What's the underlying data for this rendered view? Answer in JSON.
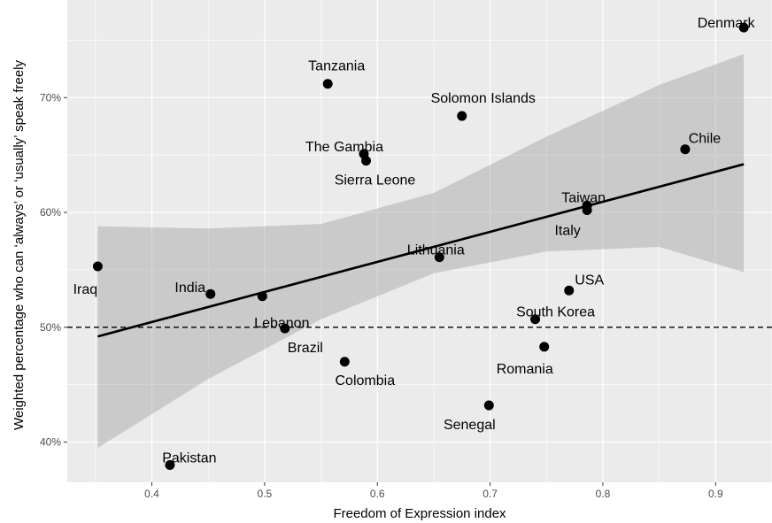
{
  "chart_data": {
    "type": "scatter",
    "xlabel": "Freedom of Expression index",
    "ylabel": "Weighted percentage who can ‘always’ or ‘usually’ speak freely",
    "xlim": [
      0.325,
      0.95
    ],
    "ylim": [
      0.365,
      0.785
    ],
    "xticks": [
      {
        "value": 0.4,
        "label": "0.4"
      },
      {
        "value": 0.5,
        "label": "0.5"
      },
      {
        "value": 0.6,
        "label": "0.6"
      },
      {
        "value": 0.7,
        "label": "0.7"
      },
      {
        "value": 0.8,
        "label": "0.8"
      },
      {
        "value": 0.9,
        "label": "0.9"
      }
    ],
    "yticks": [
      {
        "value": 0.4,
        "label": "40%"
      },
      {
        "value": 0.5,
        "label": "50%"
      },
      {
        "value": 0.6,
        "label": "60%"
      },
      {
        "value": 0.7,
        "label": "70%"
      }
    ],
    "reference_line": {
      "y": 0.5,
      "style": "dashed"
    },
    "regression_line": {
      "x": [
        0.352,
        0.925
      ],
      "y": [
        0.492,
        0.642
      ]
    },
    "confidence_band": {
      "x": [
        0.352,
        0.45,
        0.55,
        0.65,
        0.75,
        0.85,
        0.925
      ],
      "lower": [
        0.395,
        0.455,
        0.507,
        0.547,
        0.566,
        0.57,
        0.548
      ],
      "upper": [
        0.588,
        0.586,
        0.59,
        0.617,
        0.666,
        0.711,
        0.738
      ]
    },
    "points": [
      {
        "label": "Denmark",
        "x": 0.925,
        "y": 0.761
      },
      {
        "label": "Tanzania",
        "x": 0.556,
        "y": 0.712
      },
      {
        "label": "Solomon Islands",
        "x": 0.675,
        "y": 0.684
      },
      {
        "label": "The Gambia",
        "x": 0.588,
        "y": 0.651
      },
      {
        "label": "Sierra Leone",
        "x": 0.59,
        "y": 0.645
      },
      {
        "label": "Chile",
        "x": 0.873,
        "y": 0.655
      },
      {
        "label": "Taiwan",
        "x": 0.786,
        "y": 0.606
      },
      {
        "label": "Italy",
        "x": 0.786,
        "y": 0.602
      },
      {
        "label": "Lithuania",
        "x": 0.655,
        "y": 0.561
      },
      {
        "label": "Iraq",
        "x": 0.352,
        "y": 0.553
      },
      {
        "label": "India",
        "x": 0.452,
        "y": 0.529
      },
      {
        "label": "Lebanon",
        "x": 0.498,
        "y": 0.527
      },
      {
        "label": "USA",
        "x": 0.77,
        "y": 0.532
      },
      {
        "label": "South Korea",
        "x": 0.74,
        "y": 0.507
      },
      {
        "label": "Brazil",
        "x": 0.518,
        "y": 0.499
      },
      {
        "label": "Romania",
        "x": 0.748,
        "y": 0.483
      },
      {
        "label": "Colombia",
        "x": 0.571,
        "y": 0.47
      },
      {
        "label": "Senegal",
        "x": 0.699,
        "y": 0.432
      },
      {
        "label": "Pakistan",
        "x": 0.416,
        "y": 0.38
      }
    ]
  }
}
